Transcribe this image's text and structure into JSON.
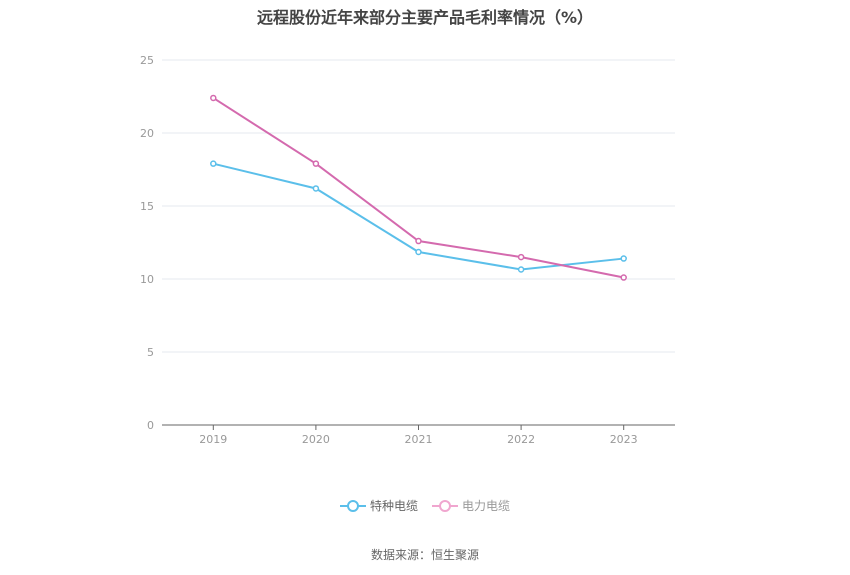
{
  "chart_data": {
    "type": "line",
    "title": "远程股份近年来部分主要产品毛利率情况（%）",
    "x": [
      "2019",
      "2020",
      "2021",
      "2022",
      "2023"
    ],
    "series": [
      {
        "name": "特种电缆",
        "color": "#5bbfea",
        "values": [
          17.9,
          16.2,
          11.85,
          10.65,
          11.4
        ]
      },
      {
        "name": "电力电缆",
        "color": "#d46aae",
        "values": [
          22.4,
          17.9,
          12.6,
          11.5,
          10.1
        ]
      }
    ],
    "ylim": [
      0,
      25
    ],
    "yticks": [
      "0",
      "5",
      "10",
      "15",
      "20",
      "25"
    ],
    "grid": true,
    "legend_placement": "bottom-center"
  },
  "footer": {
    "source": "数据来源：恒生聚源"
  }
}
